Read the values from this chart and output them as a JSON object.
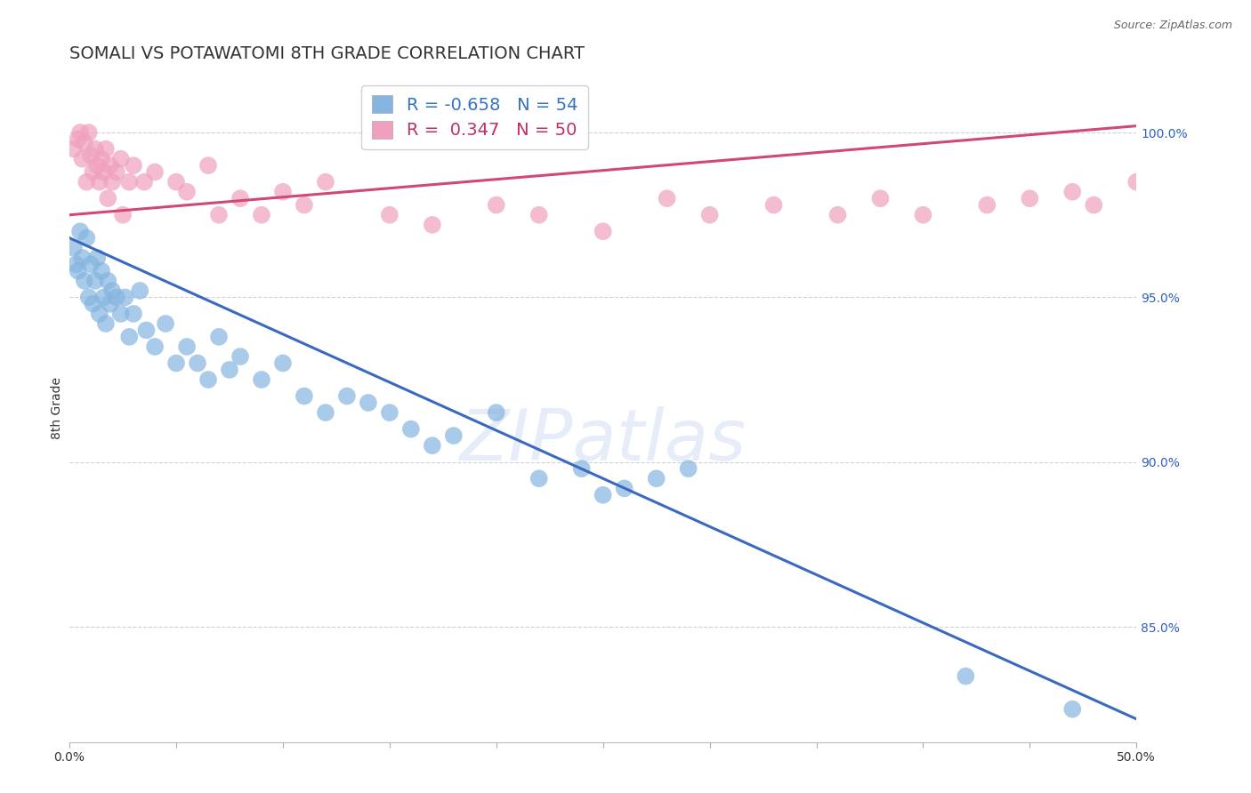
{
  "title": "SOMALI VS POTAWATOMI 8TH GRADE CORRELATION CHART",
  "source": "Source: ZipAtlas.com",
  "ylabel": "8th Grade",
  "xlim": [
    0.0,
    50.0
  ],
  "ylim": [
    81.5,
    101.8
  ],
  "yticks": [
    85.0,
    90.0,
    95.0,
    100.0
  ],
  "ytick_labels": [
    "85.0%",
    "90.0%",
    "95.0%",
    "100.0%"
  ],
  "xticks": [
    0.0,
    5.0,
    10.0,
    15.0,
    20.0,
    25.0,
    30.0,
    35.0,
    40.0,
    45.0,
    50.0
  ],
  "somali_R": -0.658,
  "somali_N": 54,
  "potawatomi_R": 0.347,
  "potawatomi_N": 50,
  "somali_color": "#85b5e0",
  "potawatomi_color": "#f0a0be",
  "somali_line_color": "#3a6abf",
  "potawatomi_line_color": "#d04878",
  "legend_R1_color": "#3373c4",
  "legend_R2_color": "#c03060",
  "somali_x": [
    0.2,
    0.3,
    0.4,
    0.5,
    0.6,
    0.7,
    0.8,
    0.9,
    1.0,
    1.1,
    1.2,
    1.3,
    1.4,
    1.5,
    1.6,
    1.7,
    1.8,
    1.9,
    2.0,
    2.2,
    2.4,
    2.6,
    2.8,
    3.0,
    3.3,
    3.6,
    4.0,
    4.5,
    5.0,
    5.5,
    6.0,
    6.5,
    7.0,
    7.5,
    8.0,
    9.0,
    10.0,
    11.0,
    12.0,
    13.0,
    14.0,
    15.0,
    16.0,
    17.0,
    18.0,
    20.0,
    22.0,
    24.0,
    25.0,
    26.0,
    27.5,
    29.0,
    42.0,
    47.0
  ],
  "somali_y": [
    96.5,
    96.0,
    95.8,
    97.0,
    96.2,
    95.5,
    96.8,
    95.0,
    96.0,
    94.8,
    95.5,
    96.2,
    94.5,
    95.8,
    95.0,
    94.2,
    95.5,
    94.8,
    95.2,
    95.0,
    94.5,
    95.0,
    93.8,
    94.5,
    95.2,
    94.0,
    93.5,
    94.2,
    93.0,
    93.5,
    93.0,
    92.5,
    93.8,
    92.8,
    93.2,
    92.5,
    93.0,
    92.0,
    91.5,
    92.0,
    91.8,
    91.5,
    91.0,
    90.5,
    90.8,
    91.5,
    89.5,
    89.8,
    89.0,
    89.2,
    89.5,
    89.8,
    83.5,
    82.5
  ],
  "potawatomi_x": [
    0.2,
    0.4,
    0.5,
    0.6,
    0.7,
    0.8,
    0.9,
    1.0,
    1.1,
    1.2,
    1.3,
    1.4,
    1.5,
    1.6,
    1.7,
    1.8,
    1.9,
    2.0,
    2.2,
    2.4,
    2.5,
    2.8,
    3.0,
    3.5,
    4.0,
    5.0,
    5.5,
    6.5,
    7.0,
    8.0,
    9.0,
    10.0,
    11.0,
    12.0,
    15.0,
    17.0,
    20.0,
    22.0,
    25.0,
    28.0,
    30.0,
    33.0,
    36.0,
    38.0,
    40.0,
    43.0,
    45.0,
    47.0,
    48.0,
    50.0
  ],
  "potawatomi_y": [
    99.5,
    99.8,
    100.0,
    99.2,
    99.7,
    98.5,
    100.0,
    99.3,
    98.8,
    99.5,
    99.0,
    98.5,
    99.2,
    98.8,
    99.5,
    98.0,
    99.0,
    98.5,
    98.8,
    99.2,
    97.5,
    98.5,
    99.0,
    98.5,
    98.8,
    98.5,
    98.2,
    99.0,
    97.5,
    98.0,
    97.5,
    98.2,
    97.8,
    98.5,
    97.5,
    97.2,
    97.8,
    97.5,
    97.0,
    98.0,
    97.5,
    97.8,
    97.5,
    98.0,
    97.5,
    97.8,
    98.0,
    98.2,
    97.8,
    98.5
  ],
  "somali_trend_x": [
    0.0,
    50.0
  ],
  "somali_trend_y": [
    96.8,
    82.2
  ],
  "potawatomi_trend_x": [
    0.0,
    50.0
  ],
  "potawatomi_trend_y": [
    97.5,
    100.2
  ],
  "background_color": "#ffffff",
  "grid_color": "#cccccc",
  "title_fontsize": 14,
  "axis_label_fontsize": 10,
  "tick_label_fontsize": 10,
  "legend_fontsize": 14,
  "watermark": "ZIPatlas"
}
